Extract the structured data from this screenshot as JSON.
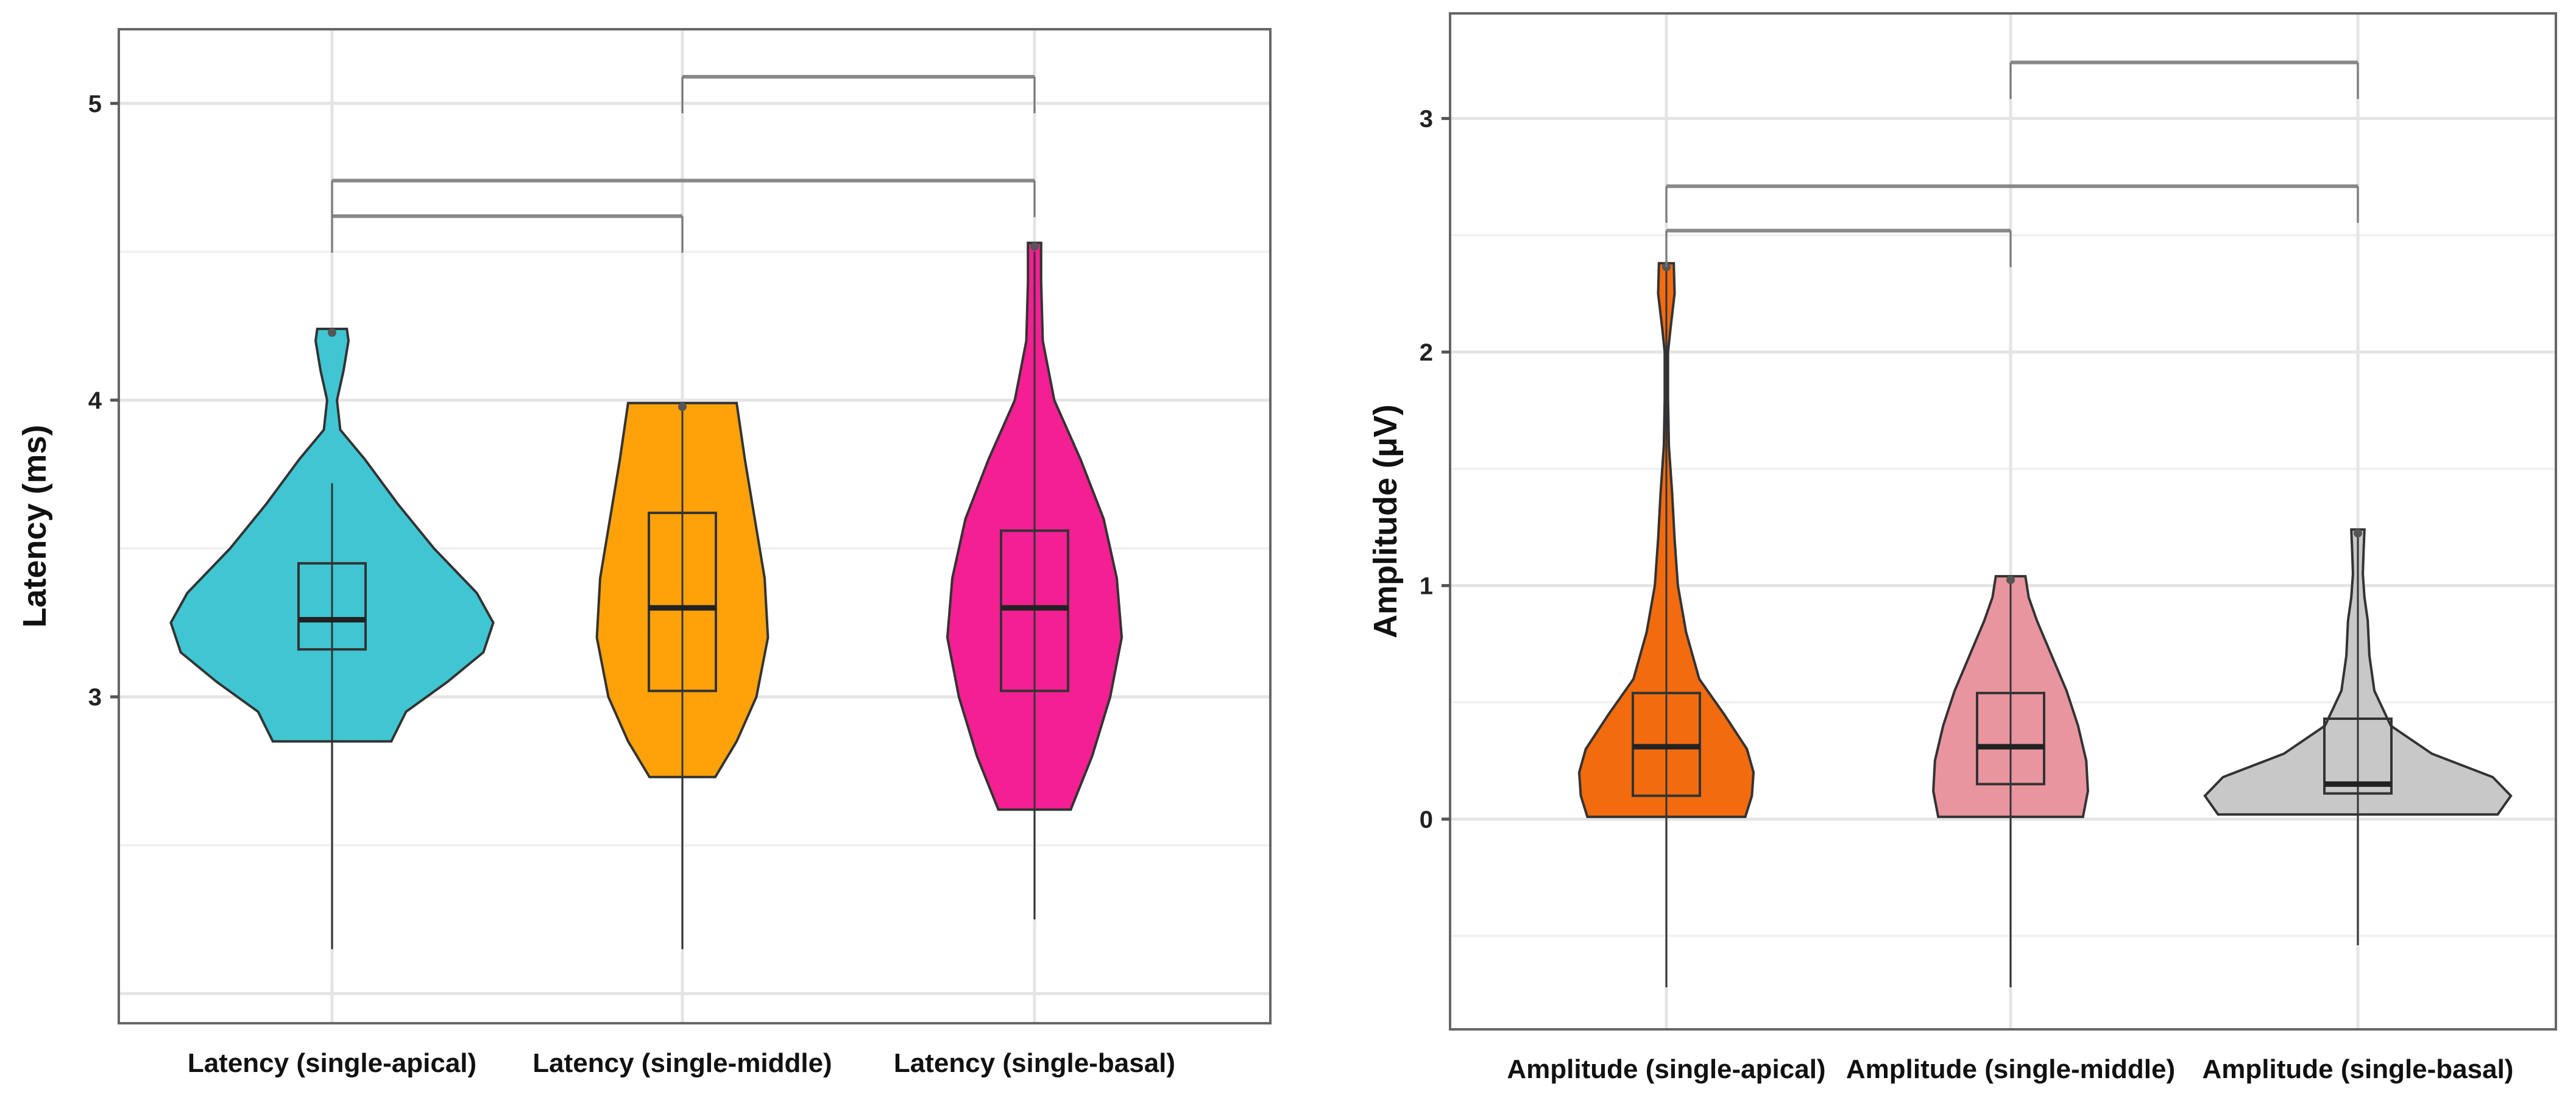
{
  "chart_data": [
    {
      "type": "violin",
      "ylabel": "Latency (ms)",
      "xlabel": "",
      "ylim": [
        1.9,
        5.25
      ],
      "yticks": [
        3,
        4,
        5
      ],
      "grid": true,
      "categories": [
        "Latency (single-apical)",
        "Latency (single-middle)",
        "Latency (single-basal)"
      ],
      "series": [
        {
          "name": "Latency (single-apical)",
          "color": "#3fc6d2",
          "min": 2.15,
          "q1": 3.16,
          "median": 3.26,
          "q3": 3.45,
          "max": 3.72,
          "violin_min": 2.85,
          "violin_max": 4.24,
          "density": [
            [
              2.85,
              0.36
            ],
            [
              2.95,
              0.45
            ],
            [
              3.05,
              0.7
            ],
            [
              3.15,
              0.92
            ],
            [
              3.25,
              0.98
            ],
            [
              3.35,
              0.88
            ],
            [
              3.5,
              0.62
            ],
            [
              3.65,
              0.4
            ],
            [
              3.8,
              0.2
            ],
            [
              3.9,
              0.05
            ],
            [
              4.0,
              0.03
            ],
            [
              4.1,
              0.07
            ],
            [
              4.2,
              0.1
            ],
            [
              4.24,
              0.09
            ]
          ]
        },
        {
          "name": "Latency (single-middle)",
          "color": "#ffa20a",
          "min": 2.15,
          "q1": 3.02,
          "median": 3.3,
          "q3": 3.62,
          "max": 3.98,
          "violin_min": 2.73,
          "violin_max": 3.99,
          "density": [
            [
              2.73,
              0.2
            ],
            [
              2.85,
              0.33
            ],
            [
              3.0,
              0.45
            ],
            [
              3.2,
              0.52
            ],
            [
              3.4,
              0.5
            ],
            [
              3.6,
              0.44
            ],
            [
              3.8,
              0.38
            ],
            [
              3.99,
              0.33
            ]
          ]
        },
        {
          "name": "Latency (single-basal)",
          "color": "#f41f93",
          "min": 2.25,
          "q1": 3.02,
          "median": 3.3,
          "q3": 3.56,
          "max": 4.5,
          "violin_min": 2.62,
          "violin_max": 4.53,
          "density": [
            [
              2.62,
              0.22
            ],
            [
              2.8,
              0.35
            ],
            [
              3.0,
              0.46
            ],
            [
              3.2,
              0.53
            ],
            [
              3.4,
              0.5
            ],
            [
              3.6,
              0.42
            ],
            [
              3.8,
              0.28
            ],
            [
              4.0,
              0.12
            ],
            [
              4.2,
              0.05
            ],
            [
              4.4,
              0.04
            ],
            [
              4.53,
              0.04
            ]
          ]
        }
      ],
      "significance_brackets": [
        {
          "from": 0,
          "to": 1,
          "y": 4.62
        },
        {
          "from": 0,
          "to": 2,
          "y": 4.74
        },
        {
          "from": 1,
          "to": 2,
          "y": 5.09
        }
      ]
    },
    {
      "type": "violin",
      "ylabel": "Amplitude  (μV)",
      "xlabel": "",
      "ylim": [
        -0.9,
        3.45
      ],
      "yticks": [
        0,
        1,
        2,
        3
      ],
      "grid": true,
      "categories": [
        "Amplitude (single-apical)",
        "Amplitude (single-middle)",
        "Amplitude (single-basal)"
      ],
      "series": [
        {
          "name": "Amplitude (single-apical)",
          "color": "#f26b0f",
          "min": -0.72,
          "q1": 0.1,
          "median": 0.31,
          "q3": 0.54,
          "max": 2.38,
          "violin_min": 0.01,
          "violin_max": 2.38,
          "density": [
            [
              0.01,
              0.48
            ],
            [
              0.1,
              0.52
            ],
            [
              0.2,
              0.53
            ],
            [
              0.3,
              0.49
            ],
            [
              0.45,
              0.35
            ],
            [
              0.6,
              0.2
            ],
            [
              0.8,
              0.12
            ],
            [
              1.0,
              0.07
            ],
            [
              1.2,
              0.05
            ],
            [
              1.4,
              0.035
            ],
            [
              1.6,
              0.015
            ],
            [
              1.8,
              0.01
            ],
            [
              2.0,
              0.01
            ],
            [
              2.1,
              0.025
            ],
            [
              2.25,
              0.05
            ],
            [
              2.38,
              0.045
            ]
          ]
        },
        {
          "name": "Amplitude (single-middle)",
          "color": "#e8959f",
          "min": -0.72,
          "q1": 0.15,
          "median": 0.31,
          "q3": 0.54,
          "max": 1.04,
          "violin_min": 0.01,
          "violin_max": 1.04,
          "density": [
            [
              0.01,
              0.44
            ],
            [
              0.12,
              0.47
            ],
            [
              0.25,
              0.46
            ],
            [
              0.4,
              0.41
            ],
            [
              0.55,
              0.34
            ],
            [
              0.7,
              0.25
            ],
            [
              0.85,
              0.16
            ],
            [
              0.95,
              0.11
            ],
            [
              1.04,
              0.09
            ]
          ]
        },
        {
          "name": "Amplitude (single-basal)",
          "color": "#c8c8c8",
          "min": -0.54,
          "q1": 0.11,
          "median": 0.15,
          "q3": 0.43,
          "max": 1.22,
          "violin_min": 0.02,
          "violin_max": 1.24,
          "density": [
            [
              0.02,
              0.85
            ],
            [
              0.1,
              0.93
            ],
            [
              0.18,
              0.82
            ],
            [
              0.28,
              0.45
            ],
            [
              0.4,
              0.2
            ],
            [
              0.55,
              0.1
            ],
            [
              0.7,
              0.07
            ],
            [
              0.85,
              0.06
            ],
            [
              0.95,
              0.04
            ],
            [
              1.05,
              0.03
            ],
            [
              1.15,
              0.035
            ],
            [
              1.24,
              0.04
            ]
          ]
        }
      ],
      "significance_brackets": [
        {
          "from": 0,
          "to": 1,
          "y": 2.52
        },
        {
          "from": 0,
          "to": 2,
          "y": 2.71
        },
        {
          "from": 1,
          "to": 2,
          "y": 3.24
        }
      ]
    }
  ]
}
